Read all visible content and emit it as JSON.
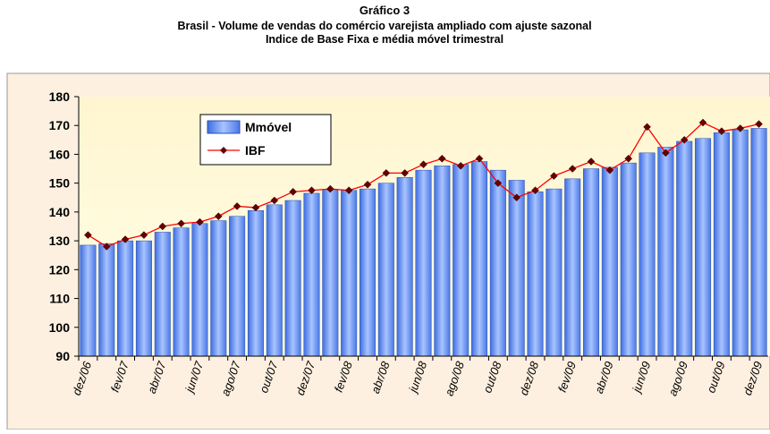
{
  "chart_data": {
    "type": "bar_line",
    "title": "Gráfico 3",
    "subtitle": "Brasil - Volume de vendas do comércio varejista ampliado com ajuste sazonal",
    "subtitle2": "Indice de Base Fixa  e média móvel trimestral",
    "categories": [
      "dez/06",
      null,
      "fev/07",
      null,
      "abr/07",
      null,
      "jun/07",
      null,
      "ago/07",
      null,
      "out/07",
      null,
      "dez/07",
      null,
      "fev/08",
      null,
      "abr/08",
      null,
      "jun/08",
      null,
      "ago/08",
      null,
      "out/08",
      null,
      "dez/08",
      null,
      "fev/09",
      null,
      "abr/09",
      null,
      "jun/09",
      null,
      "ago/09",
      null,
      "out/09",
      null,
      "dez/09"
    ],
    "series": [
      {
        "name": "Mmóvel",
        "type": "bar",
        "color": "#6f95f0",
        "values": [
          128.5,
          129,
          130,
          130,
          133,
          134.5,
          136,
          137,
          138.5,
          140.5,
          142.5,
          144,
          146.5,
          147.5,
          147.5,
          148,
          150,
          152,
          154.5,
          156,
          156.5,
          157.5,
          154.5,
          151,
          147,
          148,
          151.5,
          155,
          155.5,
          157,
          160.5,
          162.5,
          164.5,
          165.5,
          167.5,
          168.5,
          169
        ]
      },
      {
        "name": "IBF",
        "type": "line",
        "color": "#ff0000",
        "values": [
          132,
          128,
          130.5,
          132,
          135,
          136,
          136.5,
          138.5,
          142,
          141.5,
          144,
          147,
          147.5,
          148,
          147.5,
          149.5,
          153.5,
          153.5,
          156.5,
          158.5,
          156,
          158.5,
          150,
          145,
          147.5,
          152.5,
          155,
          157.5,
          154.5,
          158.5,
          169.5,
          160.5,
          165,
          171,
          168,
          169,
          170.5
        ]
      }
    ],
    "ylim": [
      90,
      180
    ],
    "yticks": [
      90,
      100,
      110,
      120,
      130,
      140,
      150,
      160,
      170,
      180
    ]
  }
}
